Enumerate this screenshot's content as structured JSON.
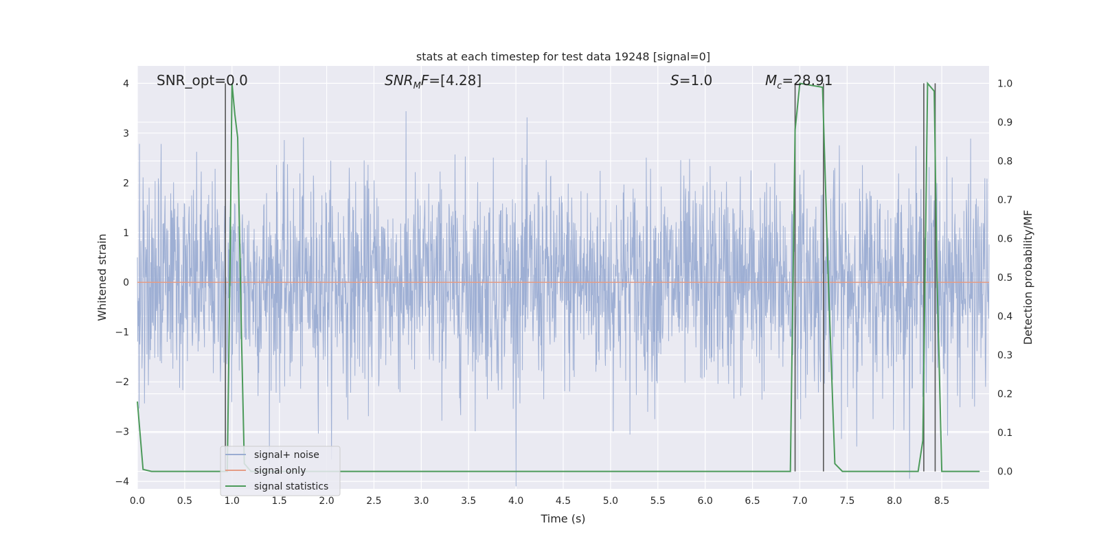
{
  "chart_data": {
    "type": "line",
    "title": "stats at each timestep for test data 19248 [signal=0]",
    "xlabel": "Time (s)",
    "ylabel_left": "Whitened strain",
    "ylabel_right": "Detection probability/MF",
    "xlim": [
      0.0,
      9.0
    ],
    "ylim_left": [
      -4.15,
      4.35
    ],
    "ylim_right": [
      -0.045,
      1.045
    ],
    "x_ticks": [
      "0.0",
      "0.5",
      "1.0",
      "1.5",
      "2.0",
      "2.5",
      "3.0",
      "3.5",
      "4.0",
      "4.5",
      "5.0",
      "5.5",
      "6.0",
      "6.5",
      "7.0",
      "7.5",
      "8.0",
      "8.5"
    ],
    "y_ticks_left": [
      "4",
      "3",
      "2",
      "1",
      "0",
      "−1",
      "−2",
      "−3",
      "−4"
    ],
    "y_ticks_right": [
      "1.0",
      "0.9",
      "0.8",
      "0.7",
      "0.6",
      "0.5",
      "0.4",
      "0.3",
      "0.2",
      "0.1",
      "0.0"
    ],
    "grid": true,
    "legend_position": "lower-left",
    "annotations": {
      "snr_opt": "SNR_opt=0.0",
      "snr_mf": "[4.28]",
      "snr_mf_prefix": "SNR",
      "snr_mf_sub": "M",
      "snr_mf_mid": "F=",
      "s_value": "=1.0",
      "s_symbol": "S",
      "mc_symbol": "M",
      "mc_sub": "c",
      "mc_value": "=28.91"
    },
    "series": [
      {
        "name": "signal+ noise",
        "color": "#9aacd2",
        "description_values": "whitened noise, envelope approx ±1.8 with peaks up to about ±4"
      },
      {
        "name": "signal only",
        "color": "#e49c86",
        "values_constant": 0.0
      },
      {
        "name": "signal statistics",
        "color": "#4c9a5a",
        "axis": "right",
        "x": [
          0.0,
          0.06,
          0.15,
          0.9,
          0.95,
          0.98,
          1.0,
          1.03,
          1.06,
          1.1,
          1.13,
          1.2,
          6.9,
          6.95,
          7.0,
          7.24,
          7.3,
          7.37,
          7.45,
          8.25,
          8.3,
          8.35,
          8.42,
          8.45,
          8.5,
          8.9
        ],
        "y": [
          0.18,
          0.005,
          0.0,
          0.0,
          0.0,
          0.55,
          1.0,
          0.92,
          0.86,
          0.35,
          0.02,
          0.0,
          0.0,
          0.88,
          1.0,
          0.99,
          0.5,
          0.02,
          0.0,
          0.0,
          0.08,
          1.0,
          0.98,
          0.5,
          0.0,
          0.0
        ]
      }
    ],
    "vertical_markers": [
      {
        "x": 0.93,
        "top": 1.0
      },
      {
        "x": 7.25,
        "top": 1.0
      },
      {
        "x": 6.95,
        "top": 1.0
      },
      {
        "x": 8.31,
        "top": 1.0
      },
      {
        "x": 8.43,
        "top": 1.0
      }
    ]
  },
  "colors": {
    "plot_background": "#eaeaf2",
    "grid": "#ffffff",
    "marker_line": "#555555"
  }
}
